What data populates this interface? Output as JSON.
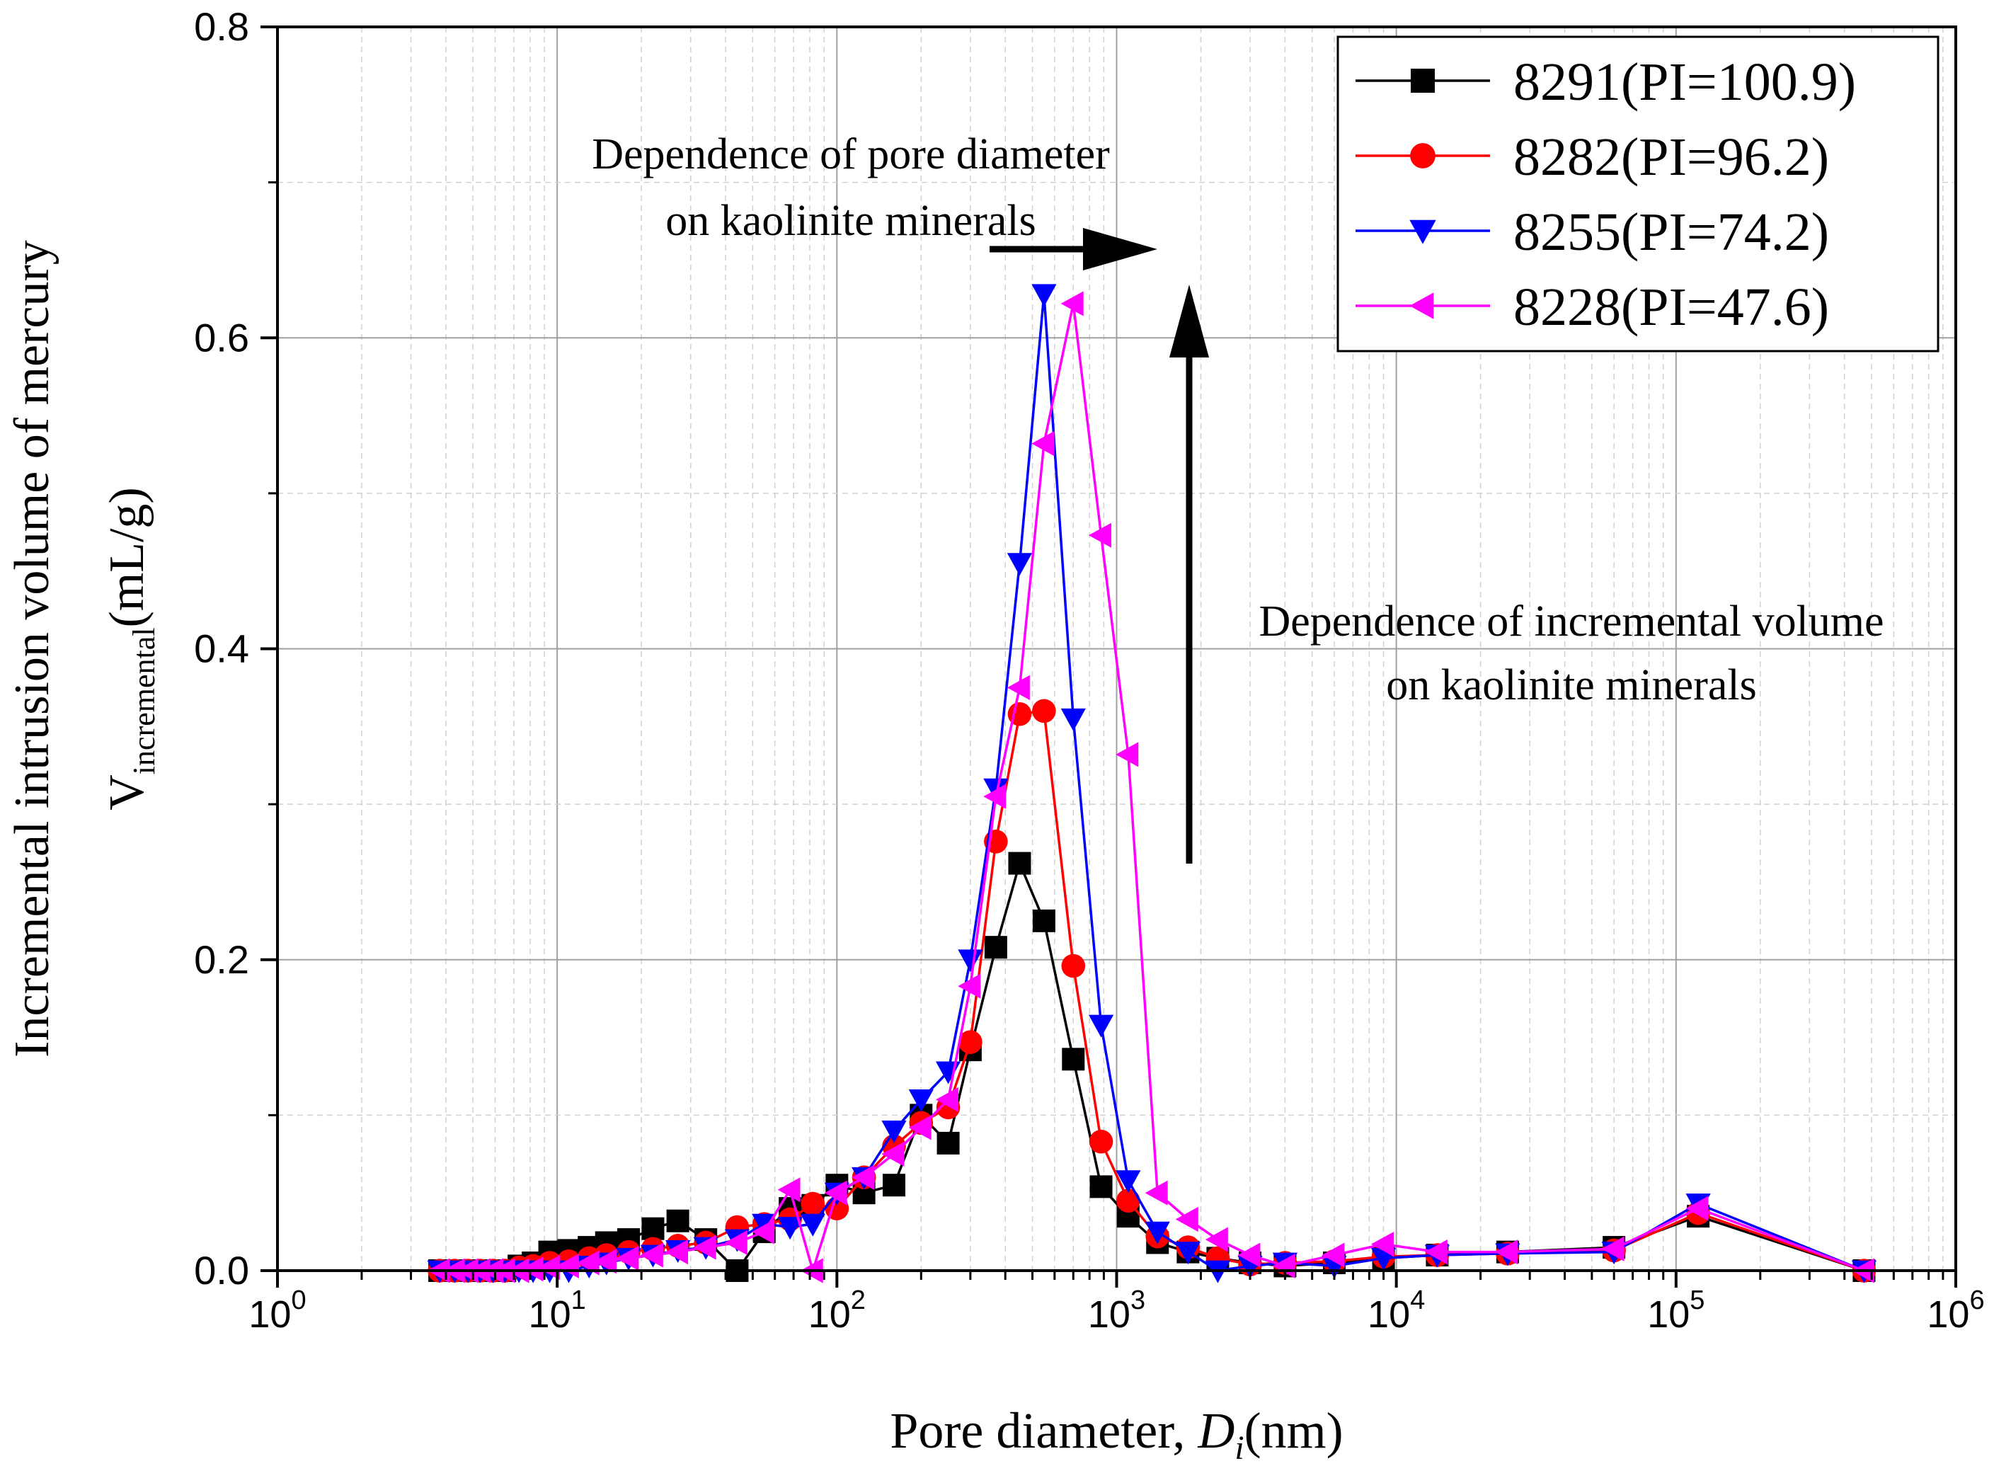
{
  "chart_data": {
    "type": "line",
    "title": "",
    "xlabel": "Pore diameter, ",
    "xlabel_var": "D",
    "xlabel_sub": "i",
    "xlabel_unit": "(nm)",
    "ylabel_line1": "Incremental intrusion volume of mercury",
    "ylabel_line2_main": "V",
    "ylabel_line2_sub": "incremental",
    "ylabel_line2_unit": "(mL/g)",
    "x_scale": "log",
    "xlim": [
      1,
      1000000
    ],
    "ylim": [
      0,
      0.8
    ],
    "x_tick_labels": [
      {
        "base": "10",
        "exp": "0"
      },
      {
        "base": "10",
        "exp": "1"
      },
      {
        "base": "10",
        "exp": "2"
      },
      {
        "base": "10",
        "exp": "3"
      },
      {
        "base": "10",
        "exp": "4"
      },
      {
        "base": "10",
        "exp": "5"
      },
      {
        "base": "10",
        "exp": "6"
      }
    ],
    "y_ticks": [
      0,
      0.2,
      0.4,
      0.6,
      0.8
    ],
    "y_tick_labels": [
      "0.0",
      "0.2",
      "0.4",
      "0.6",
      "0.8"
    ],
    "grid": true,
    "legend_position": "top-right",
    "annotations": [
      {
        "text": [
          "Dependence of pore diameter",
          "on kaolinite minerals"
        ],
        "arrow": "right"
      },
      {
        "text": [
          "Dependence of incremental volume",
          "on kaolinite minerals"
        ],
        "arrow": "up"
      }
    ],
    "series": [
      {
        "name": "8291(PI=100.9)",
        "color": "#000000",
        "marker": "square",
        "x": [
          3.8,
          4.3,
          4.8,
          5.3,
          5.9,
          6.5,
          7.3,
          8.2,
          9.4,
          11,
          13,
          15,
          18,
          22,
          27,
          34,
          44,
          55,
          68,
          82,
          100,
          125,
          160,
          200,
          250,
          300,
          370,
          450,
          550,
          700,
          880,
          1100,
          1400,
          1800,
          2300,
          3000,
          4000,
          6000,
          9000,
          14000,
          25000,
          60000,
          120000,
          470000
        ],
        "y": [
          0.0,
          0.0,
          0.0,
          0.0,
          0.0,
          0.0,
          0.003,
          0.005,
          0.012,
          0.013,
          0.015,
          0.018,
          0.02,
          0.027,
          0.032,
          0.02,
          0.0,
          0.025,
          0.04,
          0.042,
          0.055,
          0.05,
          0.055,
          0.1,
          0.082,
          0.142,
          0.208,
          0.262,
          0.225,
          0.136,
          0.054,
          0.035,
          0.018,
          0.012,
          0.008,
          0.005,
          0.003,
          0.005,
          0.008,
          0.01,
          0.012,
          0.015,
          0.035,
          0.0
        ]
      },
      {
        "name": "8282(PI=96.2)",
        "color": "#ff0000",
        "marker": "circle",
        "x": [
          3.8,
          4.3,
          4.8,
          5.3,
          5.9,
          6.5,
          7.3,
          8.2,
          9.4,
          11,
          13,
          15,
          18,
          22,
          27,
          34,
          44,
          55,
          68,
          82,
          100,
          125,
          160,
          200,
          250,
          300,
          370,
          450,
          550,
          700,
          880,
          1100,
          1400,
          1800,
          2300,
          3000,
          4000,
          6000,
          9000,
          14000,
          25000,
          60000,
          120000,
          470000
        ],
        "y": [
          0.0,
          0.0,
          0.0,
          0.0,
          0.0,
          0.0,
          0.002,
          0.003,
          0.005,
          0.006,
          0.008,
          0.01,
          0.012,
          0.014,
          0.016,
          0.018,
          0.028,
          0.03,
          0.033,
          0.043,
          0.04,
          0.06,
          0.08,
          0.095,
          0.105,
          0.147,
          0.276,
          0.358,
          0.36,
          0.196,
          0.083,
          0.045,
          0.022,
          0.015,
          0.008,
          0.004,
          0.005,
          0.006,
          0.009,
          0.01,
          0.011,
          0.013,
          0.037,
          0.0
        ]
      },
      {
        "name": "8255(PI=74.2)",
        "color": "#0000ff",
        "marker": "triangle-down",
        "x": [
          3.8,
          4.3,
          4.8,
          5.3,
          5.9,
          6.5,
          7.3,
          8.2,
          9.4,
          11,
          13,
          15,
          18,
          22,
          27,
          34,
          44,
          55,
          68,
          82,
          100,
          125,
          160,
          200,
          250,
          300,
          370,
          450,
          550,
          700,
          880,
          1100,
          1400,
          1800,
          2300,
          3000,
          4000,
          6000,
          9000,
          14000,
          25000,
          60000,
          120000,
          470000
        ],
        "y": [
          0.0,
          0.0,
          0.0,
          0.0,
          0.0,
          0.0,
          0.0,
          0.0,
          0.0,
          0.0,
          0.003,
          0.005,
          0.008,
          0.01,
          0.013,
          0.015,
          0.02,
          0.03,
          0.028,
          0.03,
          0.05,
          0.06,
          0.09,
          0.11,
          0.128,
          0.2,
          0.31,
          0.455,
          0.628,
          0.355,
          0.158,
          0.058,
          0.025,
          0.012,
          0.0,
          0.003,
          0.005,
          0.003,
          0.008,
          0.01,
          0.011,
          0.012,
          0.043,
          0.0
        ]
      },
      {
        "name": "8228(PI=47.6)",
        "color": "#ff00ff",
        "marker": "triangle-left",
        "x": [
          3.8,
          4.3,
          4.8,
          5.3,
          5.9,
          6.5,
          7.3,
          8.2,
          9.4,
          11,
          13,
          15,
          18,
          22,
          27,
          34,
          44,
          55,
          68,
          82,
          100,
          125,
          160,
          200,
          250,
          300,
          370,
          450,
          550,
          700,
          880,
          1100,
          1400,
          1800,
          2300,
          3000,
          4000,
          6000,
          9000,
          14000,
          25000,
          60000,
          120000,
          470000
        ],
        "y": [
          0.0,
          0.0,
          0.0,
          0.0,
          0.0,
          0.0,
          0.0,
          0.001,
          0.002,
          0.003,
          0.005,
          0.006,
          0.008,
          0.01,
          0.012,
          0.015,
          0.018,
          0.025,
          0.052,
          0.0,
          0.05,
          0.06,
          0.075,
          0.092,
          0.11,
          0.183,
          0.305,
          0.375,
          0.532,
          0.622,
          0.473,
          0.332,
          0.05,
          0.033,
          0.02,
          0.01,
          0.003,
          0.01,
          0.017,
          0.012,
          0.012,
          0.014,
          0.04,
          0.0
        ]
      }
    ]
  }
}
